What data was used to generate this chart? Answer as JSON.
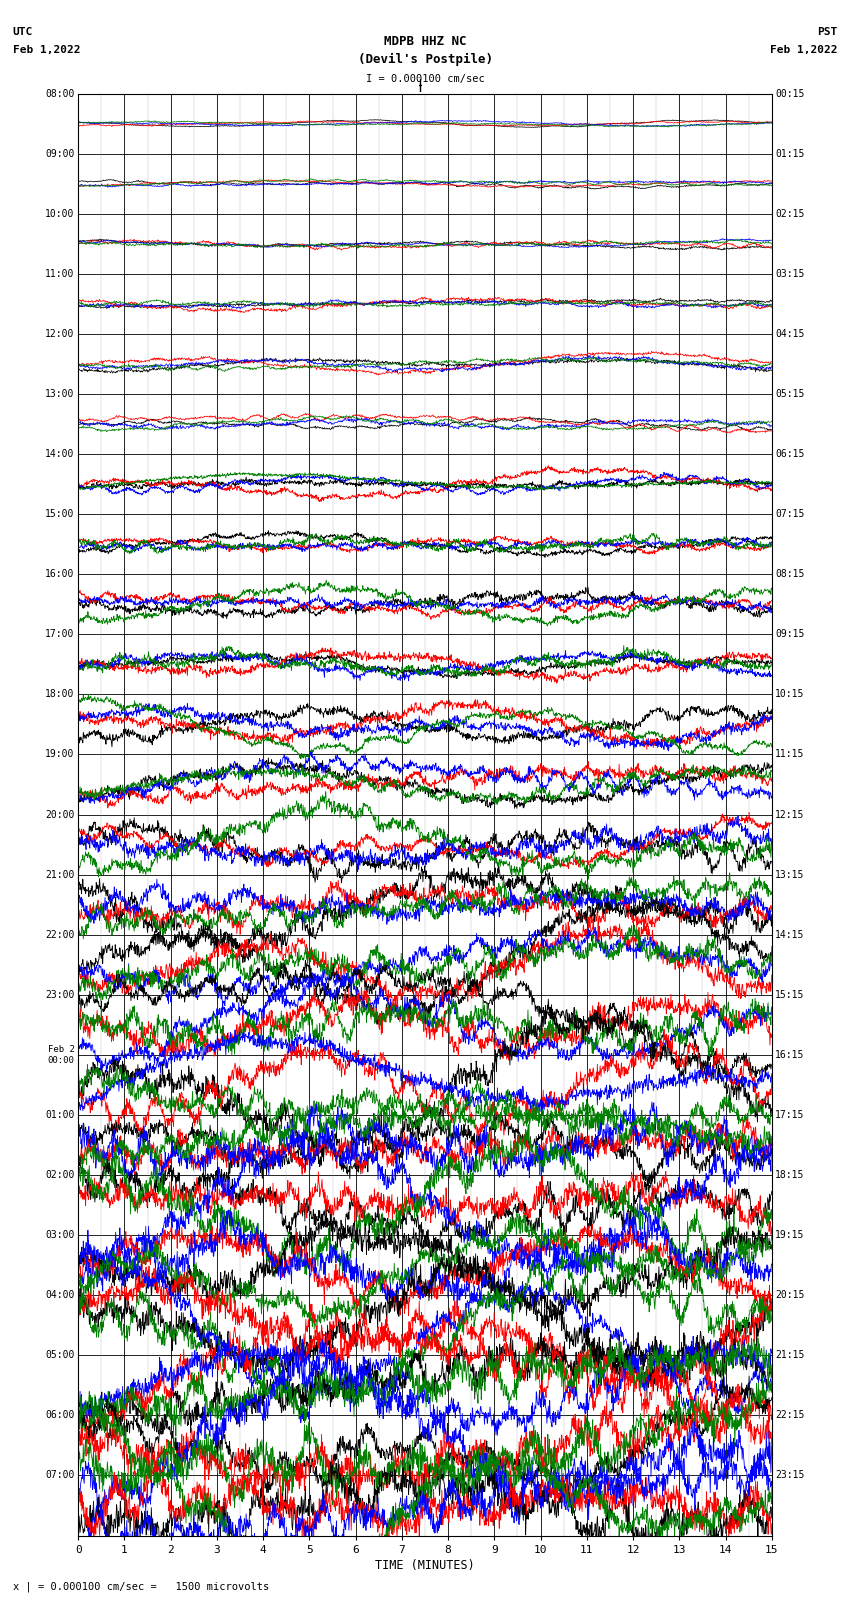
{
  "title_line1": "MDPB HHZ NC",
  "title_line2": "(Devil's Postpile)",
  "scale_label": "I = 0.000100 cm/sec",
  "utc_label": "UTC",
  "utc_date": "Feb 1,2022",
  "pst_label": "PST",
  "pst_date": "Feb 1,2022",
  "bottom_label": "TIME (MINUTES)",
  "bottom_scale": "x | = 0.000100 cm/sec =   1500 microvolts",
  "left_times_utc": [
    "08:00",
    "09:00",
    "10:00",
    "11:00",
    "12:00",
    "13:00",
    "14:00",
    "15:00",
    "16:00",
    "17:00",
    "18:00",
    "19:00",
    "20:00",
    "21:00",
    "22:00",
    "23:00",
    "Feb 2\n00:00",
    "01:00",
    "02:00",
    "03:00",
    "04:00",
    "05:00",
    "06:00",
    "07:00"
  ],
  "right_times_pst": [
    "00:15",
    "01:15",
    "02:15",
    "03:15",
    "04:15",
    "05:15",
    "06:15",
    "07:15",
    "08:15",
    "09:15",
    "10:15",
    "11:15",
    "12:15",
    "13:15",
    "14:15",
    "15:15",
    "16:15",
    "17:15",
    "18:15",
    "19:15",
    "20:15",
    "21:15",
    "22:15",
    "23:15"
  ],
  "n_traces": 24,
  "bg_color": "#ffffff",
  "grid_color": "#888888",
  "colors": [
    "black",
    "red",
    "blue",
    "green"
  ],
  "figwidth": 8.5,
  "figheight": 16.13
}
